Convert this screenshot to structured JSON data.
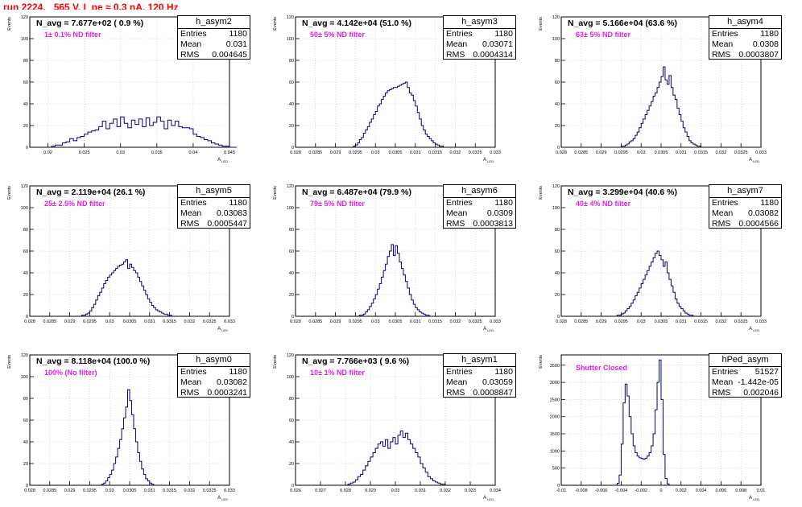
{
  "canvas_title": "run 2224,   565 V, I_pe ≈ 0.3 nA, 120 Hz",
  "stat_labels": {
    "entries": "Entries",
    "mean": "Mean",
    "rms": "RMS"
  },
  "colors": {
    "histogram": "#000080",
    "title": "#ff0000",
    "filter_note": "#e020e0"
  },
  "chart_data": [
    {
      "type": "histogram",
      "name": "h_asym2",
      "navg_text": "N_avg = 7.677e+02 ( 0.9 %)",
      "filter_text": "1± 0.1% ND filter",
      "entries": "1180",
      "mean": "0.031",
      "rms": "0.004645",
      "xlabel": "A_LED",
      "ylabel": "Events",
      "xlim": [
        0.0175,
        0.045
      ],
      "ylim": [
        0,
        120
      ],
      "xticks": [
        "0.02",
        "0.025",
        "0.03",
        "0.035",
        "0.04",
        "0.045"
      ],
      "xtick_values": [
        0.02,
        0.025,
        0.03,
        0.035,
        0.04,
        0.045
      ],
      "yticks": [
        "0",
        "20",
        "40",
        "60",
        "80",
        "100",
        "120"
      ],
      "ytick_values": [
        0,
        20,
        40,
        60,
        80,
        100,
        120
      ],
      "bin_start": 0.019,
      "bin_width": 0.0005,
      "values": [
        0,
        0,
        0,
        1,
        2,
        2,
        4,
        5,
        8,
        6,
        9,
        10,
        12,
        14,
        15,
        16,
        19,
        24,
        17,
        22,
        26,
        19,
        28,
        22,
        18,
        25,
        21,
        26,
        19,
        27,
        20,
        23,
        28,
        24,
        17,
        25,
        20,
        24,
        19,
        18,
        18,
        17,
        12,
        10,
        9,
        7,
        6,
        4,
        3,
        2,
        1,
        1,
        0,
        0
      ]
    },
    {
      "type": "histogram",
      "name": "h_asym3",
      "navg_text": "N_avg = 4.142e+04 (51.0 %)",
      "filter_text": "50± 5% ND filter",
      "entries": "1180",
      "mean": "0.03071",
      "rms": "0.0004314",
      "xlabel": "A_LED",
      "ylabel": "Events",
      "xlim": [
        0.028,
        0.033
      ],
      "ylim": [
        0,
        120
      ],
      "xticks": [
        "0.028",
        "0.0285",
        "0.029",
        "0.0295",
        "0.03",
        "0.0305",
        "0.031",
        "0.0315",
        "0.032",
        "0.0325",
        "0.033"
      ],
      "xtick_values": [
        0.028,
        0.0285,
        0.029,
        0.0295,
        0.03,
        0.0305,
        0.031,
        0.0315,
        0.032,
        0.0325,
        0.033
      ],
      "yticks": [
        "0",
        "20",
        "40",
        "60",
        "80",
        "100",
        "120"
      ],
      "ytick_values": [
        0,
        20,
        40,
        60,
        80,
        100,
        120
      ],
      "bin_start": 0.02945,
      "bin_width": 5e-05,
      "values": [
        1,
        2,
        4,
        7,
        9,
        13,
        16,
        19,
        23,
        26,
        30,
        33,
        38,
        40,
        44,
        47,
        50,
        52,
        53,
        54,
        55,
        55,
        56,
        57,
        58,
        59,
        60,
        55,
        50,
        48,
        43,
        38,
        32,
        26,
        20,
        16,
        12,
        10,
        8,
        6,
        4,
        3,
        2,
        1,
        1,
        0
      ]
    },
    {
      "type": "histogram",
      "name": "h_asym4",
      "navg_text": "N_avg = 5.166e+04 (63.6 %)",
      "filter_text": "63± 5% ND filter",
      "entries": "1180",
      "mean": "0.0308",
      "rms": "0.0003807",
      "xlabel": "A_LED",
      "ylabel": "Events",
      "xlim": [
        0.028,
        0.033
      ],
      "ylim": [
        0,
        120
      ],
      "xticks": [
        "0.028",
        "0.0285",
        "0.029",
        "0.0295",
        "0.03",
        "0.0305",
        "0.031",
        "0.0315",
        "0.032",
        "0.0325",
        "0.033"
      ],
      "xtick_values": [
        0.028,
        0.0285,
        0.029,
        0.0295,
        0.03,
        0.0305,
        0.031,
        0.0315,
        0.032,
        0.0325,
        0.033
      ],
      "yticks": [
        "0",
        "20",
        "40",
        "60",
        "80",
        "100",
        "120"
      ],
      "ytick_values": [
        0,
        20,
        40,
        60,
        80,
        100,
        120
      ],
      "bin_start": 0.0295,
      "bin_width": 5e-05,
      "values": [
        1,
        1,
        2,
        3,
        5,
        6,
        8,
        11,
        14,
        18,
        22,
        26,
        30,
        34,
        38,
        42,
        47,
        50,
        55,
        60,
        65,
        74,
        62,
        58,
        66,
        55,
        48,
        44,
        36,
        30,
        24,
        18,
        14,
        10,
        6,
        4,
        3,
        2,
        1,
        1,
        0
      ]
    },
    {
      "type": "histogram",
      "name": "h_asym5",
      "navg_text": "N_avg = 2.119e+04 (26.1 %)",
      "filter_text": "25± 2.5% ND filter",
      "entries": "1180",
      "mean": "0.03083",
      "rms": "0.0005447",
      "xlabel": "A_LED",
      "ylabel": "Events",
      "xlim": [
        0.028,
        0.033
      ],
      "ylim": [
        0,
        120
      ],
      "xticks": [
        "0.028",
        "0.0285",
        "0.029",
        "0.0295",
        "0.03",
        "0.0305",
        "0.031",
        "0.0315",
        "0.032",
        "0.0325",
        "0.033"
      ],
      "xtick_values": [
        0.028,
        0.0285,
        0.029,
        0.0295,
        0.03,
        0.0305,
        0.031,
        0.0315,
        0.032,
        0.0325,
        0.033
      ],
      "yticks": [
        "0",
        "20",
        "40",
        "60",
        "80",
        "100",
        "120"
      ],
      "ytick_values": [
        0,
        20,
        40,
        60,
        80,
        100,
        120
      ],
      "bin_start": 0.0293,
      "bin_width": 5e-05,
      "values": [
        1,
        1,
        2,
        3,
        5,
        8,
        11,
        15,
        19,
        22,
        26,
        30,
        33,
        36,
        38,
        40,
        42,
        44,
        46,
        47,
        48,
        50,
        52,
        44,
        48,
        45,
        42,
        40,
        36,
        32,
        28,
        24,
        20,
        16,
        13,
        10,
        8,
        6,
        5,
        4,
        3,
        2,
        2,
        1,
        1,
        0
      ]
    },
    {
      "type": "histogram",
      "name": "h_asym6",
      "navg_text": "N_avg = 6.487e+04 (79.9 %)",
      "filter_text": "79± 5% ND filter",
      "entries": "1180",
      "mean": "0.0309",
      "rms": "0.0003813",
      "xlabel": "A_LED",
      "ylabel": "Events",
      "xlim": [
        0.028,
        0.033
      ],
      "ylim": [
        0,
        120
      ],
      "xticks": [
        "0.028",
        "0.0285",
        "0.029",
        "0.0295",
        "0.03",
        "0.0305",
        "0.031",
        "0.0315",
        "0.032",
        "0.0325",
        "0.033"
      ],
      "xtick_values": [
        0.028,
        0.0285,
        0.029,
        0.0295,
        0.03,
        0.0305,
        0.031,
        0.0315,
        0.032,
        0.0325,
        0.033
      ],
      "yticks": [
        "0",
        "20",
        "40",
        "60",
        "80",
        "100",
        "120"
      ],
      "ytick_values": [
        0,
        20,
        40,
        60,
        80,
        100,
        120
      ],
      "bin_start": 0.0296,
      "bin_width": 5e-05,
      "values": [
        1,
        1,
        2,
        4,
        6,
        9,
        12,
        16,
        20,
        25,
        30,
        36,
        42,
        48,
        55,
        60,
        66,
        56,
        65,
        58,
        50,
        44,
        38,
        32,
        26,
        20,
        15,
        11,
        8,
        6,
        4,
        3,
        2,
        1,
        1,
        0
      ]
    },
    {
      "type": "histogram",
      "name": "h_asym7",
      "navg_text": "N_avg = 3.299e+04 (40.6 %)",
      "filter_text": "40± 4% ND filter",
      "entries": "1180",
      "mean": "0.03082",
      "rms": "0.0004566",
      "xlabel": "A_LED",
      "ylabel": "Events",
      "xlim": [
        0.028,
        0.033
      ],
      "ylim": [
        0,
        120
      ],
      "xticks": [
        "0.028",
        "0.0285",
        "0.029",
        "0.0295",
        "0.03",
        "0.0305",
        "0.031",
        "0.0315",
        "0.032",
        "0.0325",
        "0.033"
      ],
      "xtick_values": [
        0.028,
        0.0285,
        0.029,
        0.0295,
        0.03,
        0.0305,
        0.031,
        0.0315,
        0.032,
        0.0325,
        0.033
      ],
      "yticks": [
        "0",
        "20",
        "40",
        "60",
        "80",
        "100",
        "120"
      ],
      "ytick_values": [
        0,
        20,
        40,
        60,
        80,
        100,
        120
      ],
      "bin_start": 0.0294,
      "bin_width": 5e-05,
      "values": [
        1,
        1,
        2,
        3,
        5,
        7,
        9,
        12,
        15,
        19,
        22,
        26,
        30,
        34,
        38,
        42,
        46,
        50,
        54,
        58,
        60,
        56,
        52,
        46,
        50,
        40,
        34,
        28,
        22,
        16,
        12,
        9,
        7,
        5,
        3,
        2,
        1,
        1,
        0
      ]
    },
    {
      "type": "histogram",
      "name": "h_asym0",
      "navg_text": "N_avg = 8.118e+04 (100.0 %)",
      "filter_text": "100% (No filter)",
      "entries": "1180",
      "mean": "0.03082",
      "rms": "0.0003241",
      "xlabel": "A_LED",
      "ylabel": "Events",
      "xlim": [
        0.028,
        0.033
      ],
      "ylim": [
        0,
        120
      ],
      "xticks": [
        "0.028",
        "0.0285",
        "0.029",
        "0.0295",
        "0.03",
        "0.0305",
        "0.031",
        "0.0315",
        "0.032",
        "0.0325",
        "0.033"
      ],
      "xtick_values": [
        0.028,
        0.0285,
        0.029,
        0.0295,
        0.03,
        0.0305,
        0.031,
        0.0315,
        0.032,
        0.0325,
        0.033
      ],
      "yticks": [
        "0",
        "20",
        "40",
        "60",
        "80",
        "100",
        "120"
      ],
      "ytick_values": [
        0,
        20,
        40,
        60,
        80,
        100,
        120
      ],
      "bin_start": 0.0298,
      "bin_width": 5e-05,
      "values": [
        1,
        2,
        4,
        7,
        10,
        14,
        20,
        26,
        34,
        42,
        52,
        62,
        72,
        88,
        78,
        65,
        52,
        40,
        30,
        22,
        15,
        10,
        6,
        4,
        2,
        1,
        0
      ]
    },
    {
      "type": "histogram",
      "name": "h_asym1",
      "navg_text": "N_avg = 7.766e+03 ( 9.6 %)",
      "filter_text": "10± 1% ND filter",
      "entries": "1180",
      "mean": "0.03059",
      "rms": "0.0008847",
      "xlabel": "A_LED",
      "ylabel": "Events",
      "xlim": [
        0.026,
        0.034
      ],
      "ylim": [
        0,
        120
      ],
      "xticks": [
        "0.026",
        "0.027",
        "0.028",
        "0.029",
        "0.03",
        "0.031",
        "0.032",
        "0.033",
        "0.034"
      ],
      "xtick_values": [
        0.026,
        0.027,
        0.028,
        0.029,
        0.03,
        0.031,
        0.032,
        0.033,
        0.034
      ],
      "yticks": [
        "0",
        "20",
        "40",
        "60",
        "80",
        "100",
        "120"
      ],
      "ytick_values": [
        0,
        20,
        40,
        60,
        80,
        100,
        120
      ],
      "bin_start": 0.0281,
      "bin_width": 0.0001,
      "values": [
        1,
        2,
        3,
        5,
        8,
        10,
        14,
        18,
        22,
        26,
        30,
        34,
        38,
        40,
        36,
        42,
        34,
        40,
        44,
        38,
        46,
        50,
        44,
        48,
        42,
        38,
        34,
        30,
        26,
        20,
        16,
        12,
        8,
        6,
        4,
        3,
        2,
        1,
        1,
        0
      ]
    },
    {
      "type": "histogram",
      "name": "hPed_asym",
      "navg_text": "",
      "filter_text": "Shutter Closed",
      "entries": "51527",
      "mean": "-1.442e-05",
      "rms": "0.002046",
      "xlabel": "A_LED",
      "ylabel": "Events",
      "xlim": [
        -0.01,
        0.01
      ],
      "ylim": [
        0,
        3800
      ],
      "xticks": [
        "-0.01",
        "-0.008",
        "-0.006",
        "-0.004",
        "-0.002",
        "0",
        "0.002",
        "0.004",
        "0.006",
        "0.008",
        "0.01"
      ],
      "xtick_values": [
        -0.01,
        -0.008,
        -0.006,
        -0.004,
        -0.002,
        0,
        0.002,
        0.004,
        0.006,
        0.008,
        0.01
      ],
      "yticks": [
        "0",
        "500",
        "1000",
        "1500",
        "2000",
        "2500",
        "3000",
        "3500"
      ],
      "ytick_values": [
        0,
        500,
        1000,
        1500,
        2000,
        2500,
        3000,
        3500
      ],
      "bin_start": -0.0044,
      "bin_width": 0.0002,
      "values": [
        60,
        300,
        1200,
        2400,
        2950,
        2600,
        2000,
        1500,
        1150,
        950,
        850,
        800,
        780,
        760,
        790,
        850,
        950,
        1150,
        1500,
        2200,
        3000,
        3650,
        2500,
        900,
        200,
        40,
        0
      ]
    }
  ]
}
